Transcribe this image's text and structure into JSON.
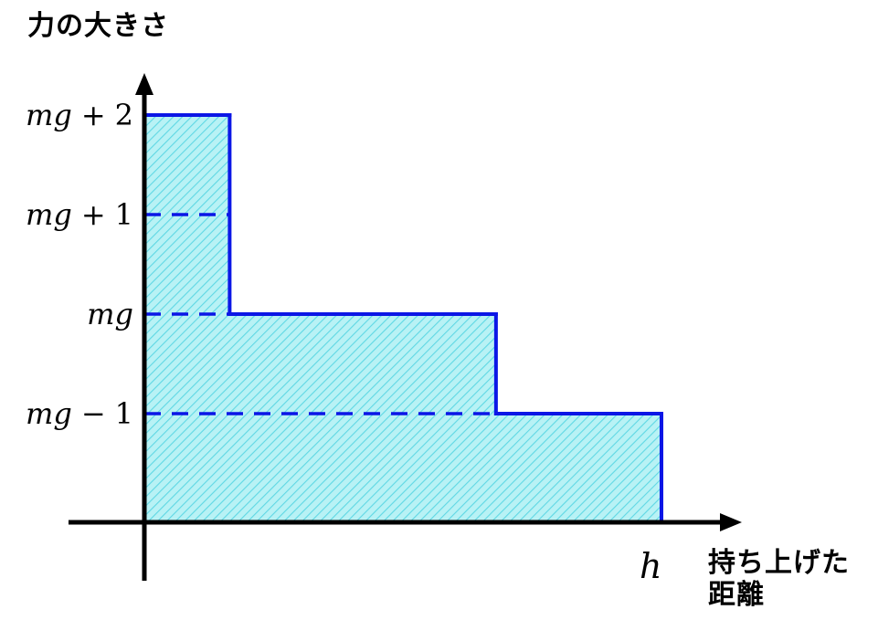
{
  "chart_data": {
    "type": "area",
    "title": "",
    "ylabel": "力の大きさ",
    "xlabel": "持ち上げた距離",
    "x_end_label": "h",
    "x_relative_breaks": [
      0,
      0.165,
      0.68,
      1
    ],
    "y_ticks": [
      {
        "var": "mg",
        "op": "+",
        "num": "2",
        "value": 2
      },
      {
        "var": "mg",
        "op": "+",
        "num": "1",
        "value": 1
      },
      {
        "var": "mg",
        "op": "",
        "num": "",
        "value": 0
      },
      {
        "var": "mg",
        "op": "−",
        "num": "1",
        "value": -1
      }
    ],
    "steps": [
      {
        "x_start": 0,
        "x_end": 0.165,
        "y": 2
      },
      {
        "x_start": 0.165,
        "x_end": 0.68,
        "y": 0
      },
      {
        "x_start": 0.68,
        "x_end": 1,
        "y": -1
      }
    ],
    "dashed_reference_levels": [
      1,
      0,
      -1
    ],
    "colors": {
      "line": "#0b16e6",
      "fill": "#b8f2f5",
      "hatch": "#5fd8e4",
      "axis": "#000000"
    }
  }
}
